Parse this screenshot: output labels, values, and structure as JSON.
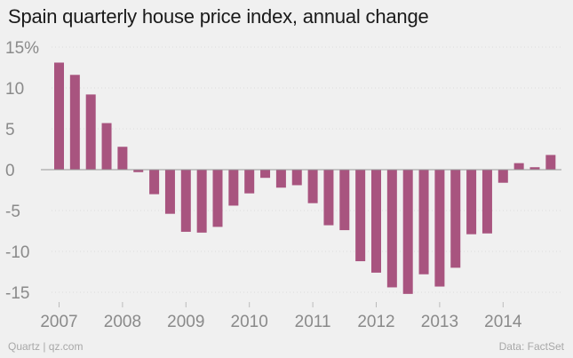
{
  "chart_data": {
    "type": "bar",
    "title": "Spain quarterly house price index, annual change",
    "xlabel": "",
    "ylabel": "",
    "ylim": [
      -16,
      15
    ],
    "y_ticks": [
      15,
      10,
      5,
      0,
      -5,
      -10,
      -15
    ],
    "y_tick_labels": [
      "15%",
      "10",
      "5",
      "0",
      "-5",
      "-10",
      "-15"
    ],
    "x_tick_labels": [
      "2007",
      "2008",
      "2009",
      "2010",
      "2011",
      "2012",
      "2013",
      "2014"
    ],
    "bar_color": "#a8547f",
    "categories": [
      "2007 Q1",
      "2007 Q2",
      "2007 Q3",
      "2007 Q4",
      "2008 Q1",
      "2008 Q2",
      "2008 Q3",
      "2008 Q4",
      "2009 Q1",
      "2009 Q2",
      "2009 Q3",
      "2009 Q4",
      "2010 Q1",
      "2010 Q2",
      "2010 Q3",
      "2010 Q4",
      "2011 Q1",
      "2011 Q2",
      "2011 Q3",
      "2011 Q4",
      "2012 Q1",
      "2012 Q2",
      "2012 Q3",
      "2012 Q4",
      "2013 Q1",
      "2013 Q2",
      "2013 Q3",
      "2013 Q4",
      "2014 Q1",
      "2014 Q2",
      "2014 Q3",
      "2014 Q4"
    ],
    "values": [
      13.1,
      11.6,
      9.2,
      5.7,
      2.8,
      -0.3,
      -3.0,
      -5.4,
      -7.6,
      -7.7,
      -7.0,
      -4.4,
      -2.9,
      -1.0,
      -2.2,
      -1.9,
      -4.1,
      -6.8,
      -7.4,
      -11.2,
      -12.6,
      -14.4,
      -15.2,
      -12.8,
      -14.3,
      -12.0,
      -7.9,
      -7.8,
      -1.6,
      0.8,
      0.3,
      1.8
    ]
  },
  "footer": {
    "source_left": "Quartz | qz.com",
    "source_right": "Data: FactSet"
  }
}
